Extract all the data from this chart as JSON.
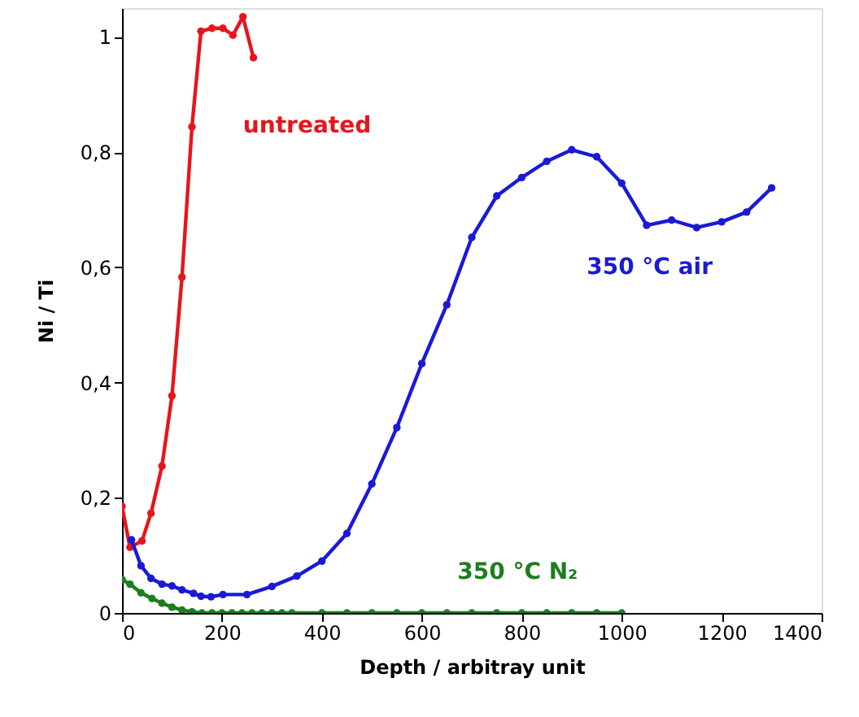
{
  "chart_data": {
    "type": "line",
    "xlabel": "Depth / arbitray unit",
    "ylabel": "Ni / Ti",
    "xlim": [
      0,
      1400
    ],
    "xticks": [
      0,
      200,
      400,
      600,
      800,
      1000,
      1200,
      1400
    ],
    "ylim": [
      0,
      1.05
    ],
    "yticks": [
      0,
      {
        "value": 0.2,
        "label": "0,2"
      },
      {
        "value": 0.4,
        "label": "0,4"
      },
      {
        "value": 0.6,
        "label": "0,6"
      },
      {
        "value": 0.8,
        "label": "0,8"
      },
      1
    ],
    "grid": false,
    "marker": "circle",
    "line_style": "solid",
    "series": [
      {
        "name": "untreated",
        "color": "#e8141c",
        "x": [
          0,
          16,
          40,
          58,
          80,
          100,
          120,
          140,
          158,
          180,
          202,
          222,
          242,
          263
        ],
        "values": [
          0.185,
          0.114,
          0.125,
          0.173,
          0.255,
          0.377,
          0.583,
          0.844,
          1.01,
          1.015,
          1.015,
          1.003,
          1.035,
          0.964
        ]
      },
      {
        "name": "350 °C air",
        "color": "#1a1ad6",
        "x": [
          19,
          38,
          58,
          80,
          100,
          120,
          143,
          158,
          178,
          202,
          250,
          300,
          350,
          400,
          450,
          500,
          550,
          600,
          650,
          700,
          750,
          800,
          850,
          900,
          950,
          1000,
          1050,
          1100,
          1150,
          1200,
          1250,
          1300
        ],
        "values": [
          0.127,
          0.082,
          0.06,
          0.05,
          0.047,
          0.04,
          0.034,
          0.029,
          0.028,
          0.032,
          0.032,
          0.046,
          0.064,
          0.09,
          0.138,
          0.224,
          0.322,
          0.433,
          0.535,
          0.652,
          0.724,
          0.756,
          0.784,
          0.804,
          0.792,
          0.746,
          0.673,
          0.682,
          0.669,
          0.679,
          0.696,
          0.738
        ]
      },
      {
        "name": "350 °C N₂",
        "color": "#1e7d1e",
        "x": [
          0,
          16,
          38,
          60,
          80,
          100,
          120,
          140,
          160,
          180,
          200,
          220,
          240,
          260,
          280,
          300,
          320,
          340,
          400,
          450,
          500,
          550,
          600,
          650,
          700,
          750,
          800,
          850,
          900,
          950,
          1000
        ],
        "values": [
          0.058,
          0.05,
          0.035,
          0.025,
          0.017,
          0.01,
          0.005,
          0.002,
          0,
          0,
          0,
          0,
          0,
          0,
          0,
          0,
          0,
          0,
          0,
          0,
          0,
          0,
          0,
          0,
          0,
          0,
          0,
          0,
          0,
          0,
          0
        ]
      }
    ]
  }
}
